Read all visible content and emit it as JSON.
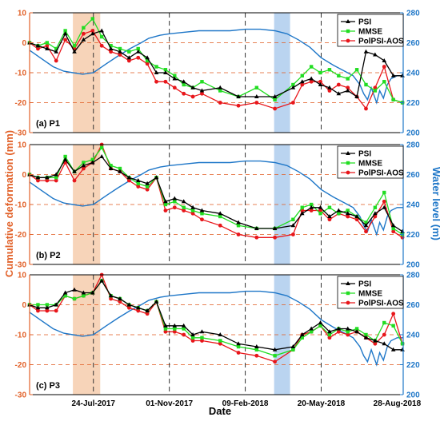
{
  "chart_data": {
    "type": "line",
    "xlabel": "Date",
    "ylabel_left": "Cumulative deformation (mm)",
    "ylabel_right": "Water level (m)",
    "x_range": [
      "2017-05-01",
      "2018-09-05"
    ],
    "x_ticks": [
      "24-Jul-2017",
      "01-Nov-2017",
      "09-Feb-2018",
      "20-May-2018",
      "28-Aug-2018"
    ],
    "y_left_range": [
      -30,
      10
    ],
    "y_left_ticks": [
      -30,
      -20,
      -10,
      0,
      10
    ],
    "y_right_range": [
      200,
      280
    ],
    "y_right_ticks": [
      200,
      220,
      240,
      260,
      280
    ],
    "highlight_bands": [
      {
        "start": "2017-06-27",
        "end": "2017-08-02",
        "color": "#f5c9a7"
      },
      {
        "start": "2018-03-19",
        "end": "2018-04-09",
        "color": "#a9c9ec"
      }
    ],
    "vertical_dashed_lines": [
      "2017-07-24",
      "2017-11-01",
      "2018-02-09",
      "2018-05-20"
    ],
    "horizontal_dashed_lines": [
      10,
      0,
      -10,
      -20
    ],
    "colors": {
      "PSI": "#000000",
      "MMSE": "#22dd22",
      "PolPSI-AOS": "#e8161b",
      "water": "#1f77c8",
      "left_axis": "#e2622a",
      "right_axis": "#1f77c8",
      "hline": "#e2622a"
    },
    "water_level": {
      "x": [
        "2017-05-01",
        "2017-05-15",
        "2017-06-01",
        "2017-06-15",
        "2017-06-27",
        "2017-07-10",
        "2017-07-24",
        "2017-08-10",
        "2017-08-25",
        "2017-09-10",
        "2017-09-25",
        "2017-10-05",
        "2017-10-20",
        "2017-11-01",
        "2017-11-20",
        "2017-12-10",
        "2018-01-01",
        "2018-01-20",
        "2018-02-09",
        "2018-03-01",
        "2018-03-20",
        "2018-04-05",
        "2018-04-20",
        "2018-05-05",
        "2018-05-20",
        "2018-06-05",
        "2018-06-20",
        "2018-07-01",
        "2018-07-10",
        "2018-07-15",
        "2018-07-20",
        "2018-07-25",
        "2018-08-01",
        "2018-08-05",
        "2018-08-10",
        "2018-08-15",
        "2018-08-20",
        "2018-08-28",
        "2018-09-05"
      ],
      "y": [
        255,
        250,
        244,
        241,
        240,
        239,
        240,
        246,
        251,
        256,
        260,
        263,
        265,
        266,
        267,
        268,
        268,
        268,
        269,
        269,
        268,
        266,
        262,
        257,
        250,
        245,
        241,
        238,
        232,
        226,
        222,
        230,
        220,
        228,
        223,
        232,
        236,
        238,
        238
      ]
    },
    "panels": [
      {
        "label": "(a) P1",
        "series": [
          {
            "name": "PSI",
            "x": [
              "2017-05-01",
              "2017-05-12",
              "2017-05-24",
              "2017-06-05",
              "2017-06-17",
              "2017-06-29",
              "2017-07-11",
              "2017-07-23",
              "2017-08-04",
              "2017-08-16",
              "2017-08-28",
              "2017-09-09",
              "2017-09-21",
              "2017-10-03",
              "2017-10-15",
              "2017-10-27",
              "2017-11-08",
              "2017-11-20",
              "2017-12-02",
              "2017-12-14",
              "2018-01-07",
              "2018-01-31",
              "2018-02-24",
              "2018-03-20",
              "2018-04-13",
              "2018-04-25",
              "2018-05-07",
              "2018-05-19",
              "2018-05-31",
              "2018-06-12",
              "2018-06-24",
              "2018-07-06",
              "2018-07-18",
              "2018-07-30",
              "2018-08-11",
              "2018-08-23",
              "2018-09-04"
            ],
            "y": [
              0,
              -1,
              -2,
              -3,
              3,
              -3,
              1,
              3,
              4,
              -2,
              -3,
              -5,
              -3,
              -5,
              -10,
              -10,
              -12,
              -13,
              -15,
              -16,
              -15,
              -18,
              -18,
              -18,
              -15,
              -13,
              -12,
              -14,
              -15,
              -17,
              -16,
              -18,
              -3,
              -4,
              -6,
              -11,
              -11
            ]
          },
          {
            "name": "MMSE",
            "x": [
              "2017-05-01",
              "2017-05-12",
              "2017-05-24",
              "2017-06-05",
              "2017-06-17",
              "2017-06-29",
              "2017-07-11",
              "2017-07-23",
              "2017-08-04",
              "2017-08-16",
              "2017-08-28",
              "2017-09-09",
              "2017-09-21",
              "2017-10-03",
              "2017-10-15",
              "2017-10-27",
              "2017-11-08",
              "2017-11-20",
              "2017-12-02",
              "2017-12-14",
              "2018-01-07",
              "2018-01-31",
              "2018-02-24",
              "2018-03-20",
              "2018-04-13",
              "2018-04-25",
              "2018-05-07",
              "2018-05-19",
              "2018-05-31",
              "2018-06-12",
              "2018-06-24",
              "2018-07-06",
              "2018-07-18",
              "2018-07-30",
              "2018-08-11",
              "2018-08-23",
              "2018-09-04"
            ],
            "y": [
              0,
              -1,
              0,
              -2,
              4,
              -1,
              5,
              8,
              2,
              -1,
              -2,
              -3,
              -2,
              -6,
              -8,
              -9,
              -11,
              -14,
              -15,
              -13,
              -16,
              -18,
              -15,
              -19,
              -14,
              -11,
              -8,
              -10,
              -9,
              -11,
              -12,
              -9,
              -14,
              -16,
              -13,
              -19,
              -20
            ]
          },
          {
            "name": "PolPSI-AOS",
            "x": [
              "2017-05-01",
              "2017-05-12",
              "2017-05-24",
              "2017-06-05",
              "2017-06-17",
              "2017-06-29",
              "2017-07-11",
              "2017-07-23",
              "2017-08-04",
              "2017-08-16",
              "2017-08-28",
              "2017-09-09",
              "2017-09-21",
              "2017-10-03",
              "2017-10-15",
              "2017-10-27",
              "2017-11-08",
              "2017-11-20",
              "2017-12-02",
              "2017-12-14",
              "2018-01-07",
              "2018-01-31",
              "2018-02-24",
              "2018-03-20",
              "2018-04-13",
              "2018-04-25",
              "2018-05-07",
              "2018-05-19",
              "2018-05-31",
              "2018-06-12",
              "2018-06-24",
              "2018-07-06",
              "2018-07-18",
              "2018-07-30",
              "2018-08-11",
              "2018-08-23",
              "2018-09-04"
            ],
            "y": [
              0,
              -2,
              -1,
              -6,
              1,
              -2,
              3,
              4,
              -1,
              -3,
              -4,
              -6,
              -5,
              -7,
              -13,
              -13,
              -15,
              -17,
              -18,
              -17,
              -20,
              -21,
              -20,
              -22,
              -20,
              -14,
              -13,
              -13,
              -16,
              -14,
              -15,
              -18,
              -22,
              -15,
              -8,
              -19,
              -20
            ]
          }
        ]
      },
      {
        "label": "(b) P2",
        "series": [
          {
            "name": "PSI",
            "x": [
              "2017-05-01",
              "2017-05-12",
              "2017-05-24",
              "2017-06-05",
              "2017-06-17",
              "2017-06-29",
              "2017-07-11",
              "2017-07-23",
              "2017-08-04",
              "2017-08-16",
              "2017-08-28",
              "2017-09-09",
              "2017-09-21",
              "2017-10-03",
              "2017-10-15",
              "2017-10-27",
              "2017-11-08",
              "2017-11-20",
              "2017-12-02",
              "2017-12-14",
              "2018-01-07",
              "2018-01-31",
              "2018-02-24",
              "2018-03-20",
              "2018-04-13",
              "2018-04-25",
              "2018-05-07",
              "2018-05-19",
              "2018-05-31",
              "2018-06-12",
              "2018-06-24",
              "2018-07-06",
              "2018-07-18",
              "2018-07-30",
              "2018-08-11",
              "2018-08-23",
              "2018-09-04"
            ],
            "y": [
              0,
              -1,
              -1,
              0,
              5,
              1,
              3,
              4,
              6,
              2,
              1,
              -1,
              -2,
              -3,
              -1,
              -9,
              -8,
              -9,
              -11,
              -12,
              -13,
              -16,
              -18,
              -18,
              -17,
              -13,
              -11,
              -11,
              -14,
              -12,
              -13,
              -14,
              -17,
              -13,
              -11,
              -17,
              -19
            ]
          },
          {
            "name": "MMSE",
            "x": [
              "2017-05-01",
              "2017-05-12",
              "2017-05-24",
              "2017-06-05",
              "2017-06-17",
              "2017-06-29",
              "2017-07-11",
              "2017-07-23",
              "2017-08-04",
              "2017-08-16",
              "2017-08-28",
              "2017-09-09",
              "2017-09-21",
              "2017-10-03",
              "2017-10-15",
              "2017-10-27",
              "2017-11-08",
              "2017-11-20",
              "2017-12-02",
              "2017-12-14",
              "2018-01-07",
              "2018-01-31",
              "2018-02-24",
              "2018-03-20",
              "2018-04-13",
              "2018-04-25",
              "2018-05-07",
              "2018-05-19",
              "2018-05-31",
              "2018-06-12",
              "2018-06-24",
              "2018-07-06",
              "2018-07-18",
              "2018-07-30",
              "2018-08-11",
              "2018-08-23",
              "2018-09-04"
            ],
            "y": [
              0,
              -1,
              -1,
              -1,
              6,
              1,
              4,
              5,
              9,
              3,
              2,
              -1,
              -3,
              -4,
              -1,
              -10,
              -9,
              -11,
              -12,
              -13,
              -14,
              -17,
              -18,
              -18,
              -15,
              -11,
              -10,
              -13,
              -11,
              -13,
              -12,
              -14,
              -16,
              -11,
              -6,
              -18,
              -20
            ]
          },
          {
            "name": "PolPSI-AOS",
            "x": [
              "2017-05-01",
              "2017-05-12",
              "2017-05-24",
              "2017-06-05",
              "2017-06-17",
              "2017-06-29",
              "2017-07-11",
              "2017-07-23",
              "2017-08-04",
              "2017-08-16",
              "2017-08-28",
              "2017-09-09",
              "2017-09-21",
              "2017-10-03",
              "2017-10-15",
              "2017-10-27",
              "2017-11-08",
              "2017-11-20",
              "2017-12-02",
              "2017-12-14",
              "2018-01-07",
              "2018-01-31",
              "2018-02-24",
              "2018-03-20",
              "2018-04-13",
              "2018-04-25",
              "2018-05-07",
              "2018-05-19",
              "2018-05-31",
              "2018-06-12",
              "2018-06-24",
              "2018-07-06",
              "2018-07-18",
              "2018-07-30",
              "2018-08-11",
              "2018-08-23",
              "2018-09-04"
            ],
            "y": [
              0,
              -2,
              -2,
              -2,
              4,
              -2,
              2,
              4,
              10,
              2,
              1,
              -2,
              -4,
              -5,
              -1,
              -12,
              -11,
              -12,
              -13,
              -15,
              -17,
              -20,
              -21,
              -21,
              -20,
              -12,
              -12,
              -12,
              -15,
              -13,
              -14,
              -15,
              -19,
              -14,
              -9,
              -19,
              -21
            ]
          }
        ]
      },
      {
        "label": "(c) P3",
        "series": [
          {
            "name": "PSI",
            "x": [
              "2017-05-01",
              "2017-05-12",
              "2017-05-24",
              "2017-06-05",
              "2017-06-17",
              "2017-06-29",
              "2017-07-11",
              "2017-07-23",
              "2017-08-04",
              "2017-08-16",
              "2017-08-28",
              "2017-09-09",
              "2017-09-21",
              "2017-10-03",
              "2017-10-15",
              "2017-10-27",
              "2017-11-08",
              "2017-11-20",
              "2017-12-02",
              "2017-12-14",
              "2018-01-07",
              "2018-01-31",
              "2018-02-24",
              "2018-03-20",
              "2018-04-13",
              "2018-04-25",
              "2018-05-07",
              "2018-05-19",
              "2018-05-31",
              "2018-06-12",
              "2018-06-24",
              "2018-07-06",
              "2018-07-18",
              "2018-07-30",
              "2018-08-11",
              "2018-08-23",
              "2018-09-04"
            ],
            "y": [
              0,
              -1,
              -1,
              0,
              4,
              5,
              4,
              4,
              8,
              3,
              2,
              0,
              -1,
              -2,
              1,
              -7,
              -7,
              -7,
              -10,
              -9,
              -10,
              -13,
              -14,
              -15,
              -14,
              -10,
              -8,
              -6,
              -9,
              -8,
              -8,
              -9,
              -11,
              -12,
              -13,
              -15,
              -15
            ]
          },
          {
            "name": "MMSE",
            "x": [
              "2017-05-01",
              "2017-05-12",
              "2017-05-24",
              "2017-06-05",
              "2017-06-17",
              "2017-06-29",
              "2017-07-11",
              "2017-07-23",
              "2017-08-04",
              "2017-08-16",
              "2017-08-28",
              "2017-09-09",
              "2017-09-21",
              "2017-10-03",
              "2017-10-15",
              "2017-10-27",
              "2017-11-08",
              "2017-11-20",
              "2017-12-02",
              "2017-12-14",
              "2018-01-07",
              "2018-01-31",
              "2018-02-24",
              "2018-03-20",
              "2018-04-13",
              "2018-04-25",
              "2018-05-07",
              "2018-05-19",
              "2018-05-31",
              "2018-06-12",
              "2018-06-24",
              "2018-07-06",
              "2018-07-18",
              "2018-07-30",
              "2018-08-11",
              "2018-08-23",
              "2018-09-04"
            ],
            "y": [
              0,
              0,
              0,
              0,
              3,
              2,
              3,
              4,
              8,
              3,
              2,
              0,
              -1,
              -2,
              1,
              -8,
              -8,
              -8,
              -11,
              -11,
              -12,
              -14,
              -15,
              -17,
              -15,
              -11,
              -9,
              -7,
              -10,
              -8,
              -9,
              -8,
              -10,
              -12,
              -6,
              -7,
              -13
            ]
          },
          {
            "name": "PolPSI-AOS",
            "x": [
              "2017-05-01",
              "2017-05-12",
              "2017-05-24",
              "2017-06-05",
              "2017-06-17",
              "2017-06-29",
              "2017-07-11",
              "2017-07-23",
              "2017-08-04",
              "2017-08-16",
              "2017-08-28",
              "2017-09-09",
              "2017-09-21",
              "2017-10-03",
              "2017-10-15",
              "2017-10-27",
              "2017-11-08",
              "2017-11-20",
              "2017-12-02",
              "2017-12-14",
              "2018-01-07",
              "2018-01-31",
              "2018-02-24",
              "2018-03-20",
              "2018-04-13",
              "2018-04-25",
              "2018-05-07",
              "2018-05-19",
              "2018-05-31",
              "2018-06-12",
              "2018-06-24",
              "2018-07-06",
              "2018-07-18",
              "2018-07-30",
              "2018-08-11",
              "2018-08-23",
              "2018-09-04"
            ],
            "y": [
              0,
              -2,
              -2,
              -2,
              3,
              2,
              3,
              4,
              10,
              2,
              1,
              -1,
              -2,
              -3,
              1,
              -9,
              -9,
              -10,
              -12,
              -12,
              -13,
              -16,
              -17,
              -19,
              -15,
              -10,
              -9,
              -7,
              -11,
              -9,
              -10,
              -9,
              -11,
              -13,
              -10,
              -3,
              -13
            ]
          }
        ]
      }
    ]
  }
}
